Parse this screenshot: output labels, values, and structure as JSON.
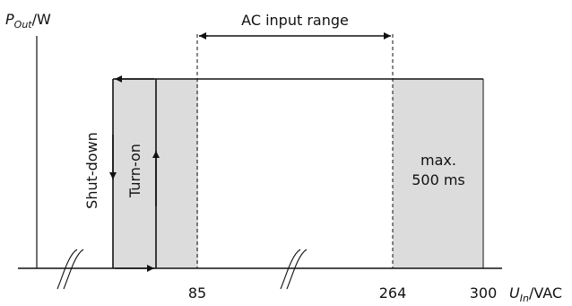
{
  "colors": {
    "line": "#111111",
    "shade": "#dcdcdc",
    "background": "#ffffff"
  },
  "axes": {
    "y_label_main": "P",
    "y_label_sub": "Out",
    "y_label_unit": "/W",
    "x_label_main": "U",
    "x_label_sub": "In",
    "x_label_unit": "/VAC"
  },
  "ticks": [
    {
      "value": 85,
      "label": "85"
    },
    {
      "value": 264,
      "label": "264"
    },
    {
      "value": 300,
      "label": "300"
    }
  ],
  "annotations": {
    "ac_range": "AC input range",
    "shutdown": "Shut-down",
    "turnon": "Turn-on",
    "max_line1": "max.",
    "max_line2": "500 ms"
  },
  "icons": [
    "axis-break-icon",
    "arrow-left-icon",
    "arrow-right-icon",
    "arrow-up-icon",
    "arrow-down-icon"
  ]
}
